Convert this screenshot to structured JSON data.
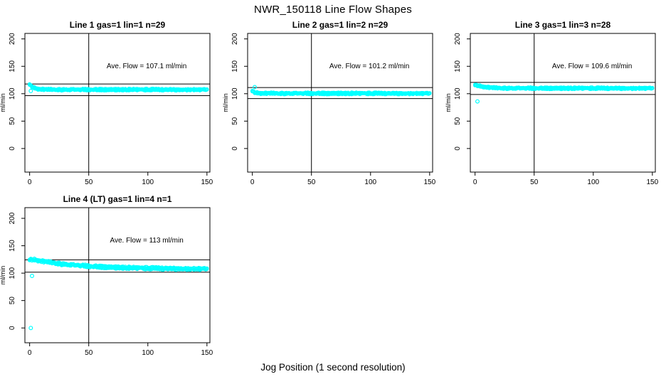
{
  "figure": {
    "title": "NWR_150118  Line Flow Shapes",
    "xlabel": "Jog Position (1 second resolution)",
    "ylabel": "ml/min",
    "point_color": "#00ffff",
    "line_color": "#000000",
    "background": "#ffffff"
  },
  "chart_data": [
    {
      "type": "scatter",
      "title": "Line 1 gas=1 lin=1 n=29",
      "annotation": "Ave. Flow =  107.1  ml/min",
      "annotation_xy": [
        99,
        150
      ],
      "ave_flow": 107.1,
      "ylabel": "ml/min",
      "x_ticks": [
        0,
        50,
        100,
        150
      ],
      "y_ticks": [
        0,
        50,
        100,
        150,
        200
      ],
      "xlim": [
        -4,
        152.5
      ],
      "ylim": [
        -43,
        210
      ],
      "grid": "off",
      "vline_x": 50,
      "hlines": [
        117.8,
        96.4
      ],
      "series": {
        "name": "flow",
        "x_start": 0,
        "x_end": 150,
        "step": 1,
        "start_value": 118,
        "settle_value": 107.5,
        "decay_tau": 3.2,
        "jitter": 1.2,
        "overlays": 3
      },
      "outliers": [
        [
          1,
          105
        ]
      ],
      "row": 0
    },
    {
      "type": "scatter",
      "title": "Line 2 gas=1 lin=2 n=29",
      "annotation": "Ave. Flow =  101.2  ml/min",
      "annotation_xy": [
        99,
        150
      ],
      "ave_flow": 101.2,
      "ylabel": "ml/min",
      "x_ticks": [
        0,
        50,
        100,
        150
      ],
      "y_ticks": [
        0,
        50,
        100,
        150,
        200
      ],
      "xlim": [
        -4,
        152.5
      ],
      "ylim": [
        -43,
        210
      ],
      "grid": "off",
      "vline_x": 50,
      "hlines": [
        111.3,
        91.1
      ],
      "series": {
        "name": "flow",
        "x_start": 0,
        "x_end": 150,
        "step": 1,
        "start_value": 106,
        "settle_value": 100.6,
        "decay_tau": 2.0,
        "jitter": 1.2,
        "overlays": 3
      },
      "outliers": [
        [
          2,
          112
        ]
      ],
      "row": 0
    },
    {
      "type": "scatter",
      "title": "Line 3 gas=1 lin=3 n=28",
      "annotation": "Ave. Flow =  109.6  ml/min",
      "annotation_xy": [
        99,
        150
      ],
      "ave_flow": 109.6,
      "ylabel": "ml/min",
      "x_ticks": [
        0,
        50,
        100,
        150
      ],
      "y_ticks": [
        0,
        50,
        100,
        150,
        200
      ],
      "xlim": [
        -4,
        152.5
      ],
      "ylim": [
        -43,
        210
      ],
      "grid": "off",
      "vline_x": 50,
      "hlines": [
        120.6,
        98.6
      ],
      "series": {
        "name": "flow",
        "x_start": 0,
        "x_end": 150,
        "step": 1,
        "start_value": 117,
        "settle_value": 110,
        "decay_tau": 7,
        "jitter": 1.2,
        "overlays": 3
      },
      "outliers": [
        [
          2,
          86
        ]
      ],
      "row": 0
    },
    {
      "type": "scatter",
      "title": "Line 4 (LT) gas=1 lin=4 n=1",
      "annotation": "Ave. Flow =  113  ml/min",
      "annotation_xy": [
        99,
        160
      ],
      "ave_flow": 113,
      "ylabel": "ml/min",
      "x_ticks": [
        0,
        50,
        100,
        150
      ],
      "y_ticks": [
        0,
        50,
        100,
        150,
        200
      ],
      "xlim": [
        -4,
        152.5
      ],
      "ylim": [
        -27,
        219.5
      ],
      "grid": "off",
      "vline_x": 50,
      "hlines": [
        124.3,
        101.7
      ],
      "series": {
        "name": "flow",
        "x_start": 0,
        "x_end": 150,
        "step": 1,
        "start_value": 126,
        "settle_value": 107.5,
        "decay_tau": 40,
        "jitter": 2.0,
        "overlays": 3
      },
      "outliers": [
        [
          1,
          0
        ],
        [
          2,
          95
        ]
      ],
      "row": 1
    }
  ]
}
